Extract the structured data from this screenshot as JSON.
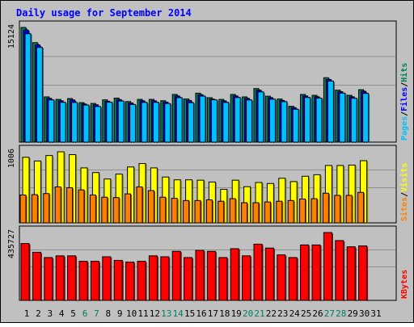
{
  "title": "Daily usage for September 2014",
  "colors": {
    "background": "#c0c0c0",
    "title": "#0000ff",
    "border": "#000000",
    "hits": "#00805c",
    "files": "#0000ff",
    "pages": "#00c0ff",
    "visits": "#ffff00",
    "sites": "#ff8000",
    "kbytes": "#ff0000",
    "weekend_label": "#00805c"
  },
  "chart_data": [
    {
      "type": "bar",
      "panel": "hits-files-pages",
      "max_label": "15124",
      "ylim": [
        0,
        15124
      ],
      "legend": [
        {
          "name": "Pages",
          "color": "#00c0ff"
        },
        {
          "name": "/",
          "color": "#000000"
        },
        {
          "name": "Files",
          "color": "#0000ff"
        },
        {
          "name": "/",
          "color": "#000000"
        },
        {
          "name": "Hits",
          "color": "#00805c"
        }
      ],
      "categories": [
        "1",
        "2",
        "3",
        "4",
        "5",
        "6",
        "7",
        "8",
        "9",
        "10",
        "11",
        "12",
        "13",
        "14",
        "15",
        "16",
        "17",
        "18",
        "19",
        "20",
        "21",
        "22",
        "23",
        "24",
        "25",
        "26",
        "27",
        "28",
        "29",
        "30",
        "31"
      ],
      "series": [
        {
          "name": "Hits",
          "values": [
            15124,
            13120,
            5966,
            5634,
            5748,
            5205,
            5098,
            5576,
            5804,
            5348,
            5633,
            5633,
            5461,
            6285,
            5690,
            6456,
            5860,
            5632,
            6286,
            5962,
            7060,
            6058,
            5684,
            4727,
            6285,
            6171,
            8492,
            6856,
            6171,
            6913,
            0
          ]
        },
        {
          "name": "Pages",
          "values": [
            14296,
            12492,
            5566,
            5248,
            5234,
            4891,
            4699,
            5260,
            5416,
            4965,
            5240,
            5244,
            5083,
            5866,
            5201,
            6072,
            5576,
            5237,
            5884,
            5556,
            6620,
            5665,
            5344,
            4334,
            5886,
            5804,
            8048,
            6460,
            5787,
            6422,
            0
          ]
        }
      ]
    },
    {
      "type": "bar",
      "panel": "visits-sites",
      "max_label": "1006",
      "ylim": [
        0,
        1006
      ],
      "legend": [
        {
          "name": "Sites",
          "color": "#ff8000"
        },
        {
          "name": "/",
          "color": "#000000"
        },
        {
          "name": "Visits",
          "color": "#ffff00"
        }
      ],
      "categories": [
        "1",
        "2",
        "3",
        "4",
        "5",
        "6",
        "7",
        "8",
        "9",
        "10",
        "11",
        "12",
        "13",
        "14",
        "15",
        "16",
        "17",
        "18",
        "19",
        "20",
        "21",
        "22",
        "23",
        "24",
        "25",
        "26",
        "27",
        "28",
        "29",
        "30",
        "31"
      ],
      "series": [
        {
          "name": "Visits",
          "values": [
            928,
            876,
            953,
            1006,
            966,
            778,
            712,
            621,
            690,
            791,
            840,
            778,
            649,
            609,
            609,
            604,
            578,
            474,
            604,
            512,
            571,
            557,
            631,
            584,
            660,
            681,
            812,
            812,
            818,
            880,
            0
          ]
        },
        {
          "name": "Sites",
          "values": [
            394,
            399,
            415,
            509,
            498,
            467,
            394,
            363,
            358,
            410,
            509,
            457,
            363,
            347,
            316,
            316,
            326,
            306,
            342,
            285,
            285,
            296,
            306,
            316,
            337,
            342,
            420,
            389,
            389,
            431,
            0
          ]
        }
      ]
    },
    {
      "type": "bar",
      "panel": "kbytes",
      "max_label": "435727",
      "ylim": [
        0,
        435727
      ],
      "legend": [
        {
          "name": "KBytes",
          "color": "#ff0000"
        }
      ],
      "categories": [
        "1",
        "2",
        "3",
        "4",
        "5",
        "6",
        "7",
        "8",
        "9",
        "10",
        "11",
        "12",
        "13",
        "14",
        "15",
        "16",
        "17",
        "18",
        "19",
        "20",
        "21",
        "22",
        "23",
        "24",
        "25",
        "26",
        "27",
        "28",
        "29",
        "30",
        "31"
      ],
      "series": [
        {
          "name": "KBytes",
          "values": [
            365000,
            309000,
            275000,
            286000,
            286000,
            251000,
            251000,
            280000,
            257000,
            246000,
            251000,
            286000,
            280000,
            315000,
            275000,
            321000,
            315000,
            275000,
            332000,
            286000,
            361000,
            336000,
            292000,
            275000,
            356000,
            356000,
            435727,
            384000,
            344000,
            350000,
            0
          ]
        }
      ]
    }
  ],
  "weekend_days": [
    "6",
    "7",
    "13",
    "14",
    "20",
    "21",
    "27",
    "28"
  ]
}
